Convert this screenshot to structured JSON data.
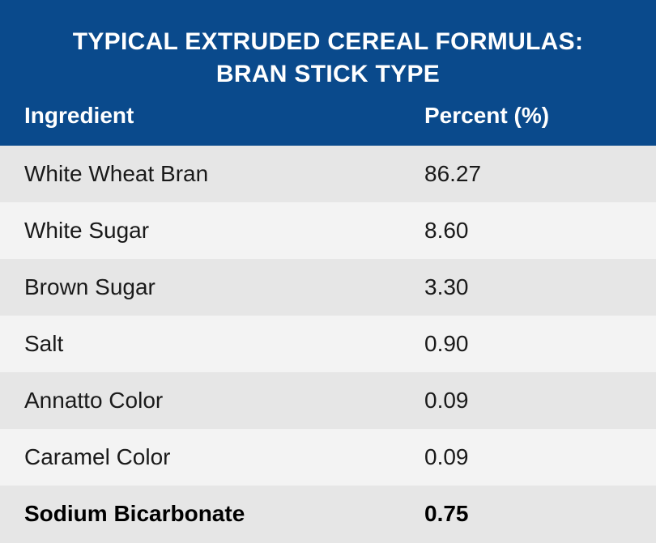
{
  "title": {
    "line1": "TYPICAL EXTRUDED CEREAL FORMULAS:",
    "line2": "BRAN STICK TYPE"
  },
  "columns": {
    "ingredient": "Ingredient",
    "percent": "Percent (%)"
  },
  "rows": [
    {
      "ingredient": "White Wheat Bran",
      "percent": "86.27"
    },
    {
      "ingredient": "White Sugar",
      "percent": "8.60"
    },
    {
      "ingredient": "Brown Sugar",
      "percent": "3.30"
    },
    {
      "ingredient": "Salt",
      "percent": "0.90"
    },
    {
      "ingredient": "Annatto Color",
      "percent": "0.09"
    },
    {
      "ingredient": "Caramel Color",
      "percent": "0.09"
    },
    {
      "ingredient": "Sodium Bicarbonate",
      "percent": "0.75"
    }
  ],
  "colors": {
    "header_bg": "#0a4a8c",
    "row_dark": "#e6e6e6",
    "row_light": "#f3f3f3"
  }
}
